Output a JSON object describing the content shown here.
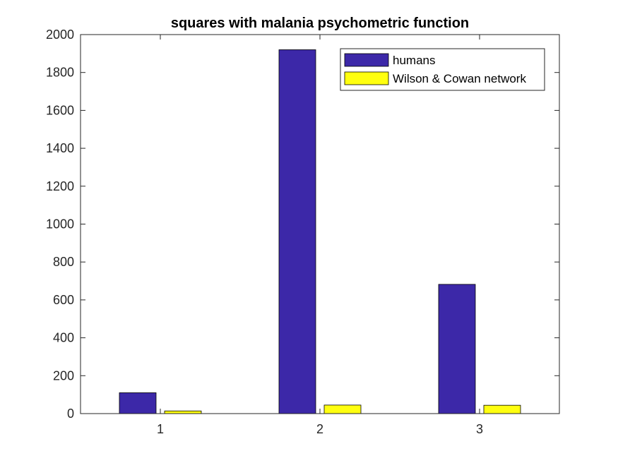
{
  "chart_data": {
    "type": "bar",
    "title": "squares with malania psychometric function",
    "xlabel": "",
    "ylabel": "",
    "categories": [
      "1",
      "2",
      "3"
    ],
    "series": [
      {
        "name": "humans",
        "color": "#3c28a8",
        "values": [
          110,
          1920,
          682
        ]
      },
      {
        "name": "Wilson & Cowan network",
        "color": "#ffff10",
        "values": [
          14,
          45,
          44
        ]
      }
    ],
    "ylim": [
      0,
      2000
    ],
    "yticks": [
      0,
      200,
      400,
      600,
      800,
      1000,
      1200,
      1400,
      1600,
      1800,
      2000
    ],
    "grid": false,
    "legend_position": "top-right"
  }
}
